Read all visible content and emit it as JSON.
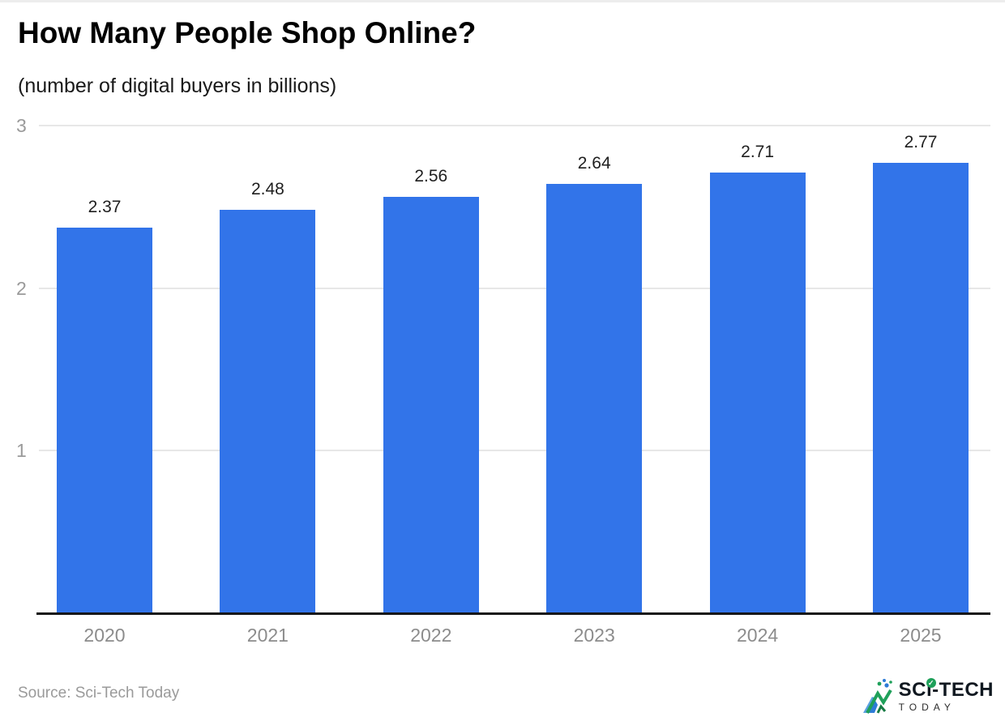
{
  "page": {
    "title": "How Many People Shop Online?",
    "subtitle": "(number of digital buyers in billions)",
    "source": "Source: Sci-Tech Today",
    "logo": {
      "line1": "SCi-TECH",
      "line2": "TODAY",
      "check_glyph": "✓",
      "accent_green": "#1fa05a",
      "accent_blue": "#2e7cd6"
    }
  },
  "chart_data": {
    "type": "bar",
    "categories": [
      "2020",
      "2021",
      "2022",
      "2023",
      "2024",
      "2025"
    ],
    "values": [
      2.37,
      2.48,
      2.56,
      2.64,
      2.71,
      2.77
    ],
    "title": "How Many People Shop Online?",
    "subtitle": "(number of digital buyers in billions)",
    "xlabel": "",
    "ylabel": "",
    "ylim": [
      0,
      3
    ],
    "yticks": [
      1,
      2,
      3
    ],
    "grid": true,
    "value_labels": true,
    "legend": "none",
    "bar_color": "#3274e9",
    "gridline_color": "#e7e7e7",
    "axis_color": "#161616"
  }
}
